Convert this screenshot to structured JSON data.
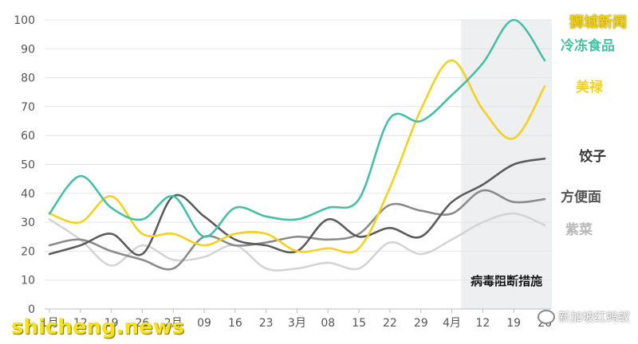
{
  "watermarks": {
    "top_right": "狮城新闻",
    "bottom_left": "shicheng.news",
    "bottom_right": "新加坡红蚂蚁"
  },
  "chart_data": {
    "type": "line",
    "y_ticks": [
      0,
      10,
      20,
      30,
      40,
      50,
      60,
      70,
      80,
      90,
      100
    ],
    "ylim": [
      0,
      100
    ],
    "x_tick_labels": [
      "1月",
      "12",
      "19",
      "26",
      "2月",
      "09",
      "16",
      "23",
      "3月",
      "08",
      "15",
      "22",
      "29",
      "4月",
      "12",
      "19",
      "26"
    ],
    "grid": "horizontal",
    "shaded_region": {
      "from_index": 13.3,
      "to_index": 16.3,
      "label": "病毒阻断措施"
    },
    "series": [
      {
        "name": "冷冻食品",
        "color": "#45c0a4",
        "values": [
          33,
          46,
          35,
          31,
          39,
          25,
          35,
          32,
          31,
          35,
          38,
          66,
          65,
          74,
          85,
          100,
          86
        ]
      },
      {
        "name": "美禄",
        "color": "#f2d21e",
        "values": [
          33,
          30,
          39,
          26,
          26,
          22,
          26,
          26,
          20,
          21,
          21,
          42,
          69,
          86,
          69,
          59,
          77
        ]
      },
      {
        "name": "饺子",
        "color": "#5c5c5c",
        "values": [
          19,
          22,
          26,
          19,
          39,
          32,
          24,
          22,
          20,
          31,
          25,
          28,
          25,
          37,
          43,
          50,
          52
        ]
      },
      {
        "name": "方便面",
        "color": "#8b8b8b",
        "values": [
          22,
          24,
          20,
          17,
          14,
          25,
          22,
          23,
          25,
          24,
          26,
          36,
          34,
          33,
          41,
          37,
          38
        ]
      },
      {
        "name": "紫菜",
        "color": "#d4d4d4",
        "values": [
          31,
          24,
          15,
          22,
          17,
          18,
          22,
          14,
          14,
          16,
          14,
          23,
          19,
          24,
          30,
          33,
          29
        ]
      }
    ]
  }
}
